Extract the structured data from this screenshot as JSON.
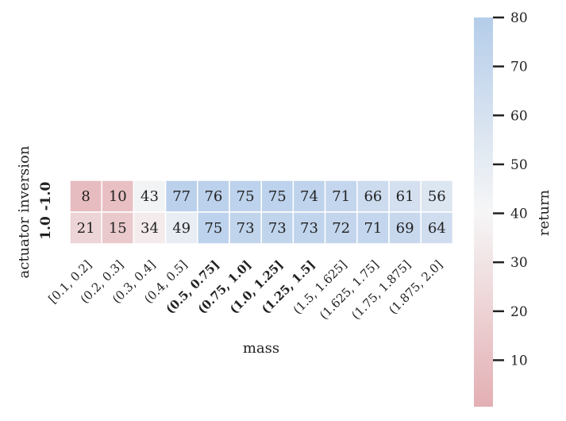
{
  "chart_data": {
    "type": "heatmap",
    "title": "",
    "xlabel": "mass",
    "ylabel": "actuator inversion",
    "x_categories": [
      {
        "label": "[0.1, 0.2]",
        "bold": false
      },
      {
        "label": "(0.2, 0.3]",
        "bold": false
      },
      {
        "label": "(0.3, 0.4]",
        "bold": false
      },
      {
        "label": "(0.4, 0.5]",
        "bold": false
      },
      {
        "label": "(0.5, 0.75]",
        "bold": true
      },
      {
        "label": "(0.75, 1.0]",
        "bold": true
      },
      {
        "label": "(1.0, 1.25]",
        "bold": true
      },
      {
        "label": "(1.25, 1.5]",
        "bold": true
      },
      {
        "label": "(1.5, 1.625]",
        "bold": false
      },
      {
        "label": "(1.625, 1.75]",
        "bold": false
      },
      {
        "label": "(1.75, 1.875]",
        "bold": false
      },
      {
        "label": "(1.875, 2.0]",
        "bold": false
      }
    ],
    "y_categories": [
      {
        "label": "-1.0",
        "bold": true
      },
      {
        "label": "1.0",
        "bold": true
      }
    ],
    "values": [
      [
        8,
        10,
        43,
        77,
        76,
        75,
        75,
        74,
        71,
        66,
        61,
        56
      ],
      [
        21,
        15,
        34,
        49,
        75,
        73,
        73,
        73,
        72,
        71,
        69,
        64
      ]
    ],
    "colorbar": {
      "label": "return",
      "min": 0,
      "max": 80,
      "center": 40,
      "ticks": [
        10,
        20,
        30,
        40,
        50,
        60,
        70,
        80
      ],
      "low_color": "#e3aeb3",
      "mid_color": "#f6f6f6",
      "high_color": "#b5cdea"
    },
    "grid": false
  }
}
